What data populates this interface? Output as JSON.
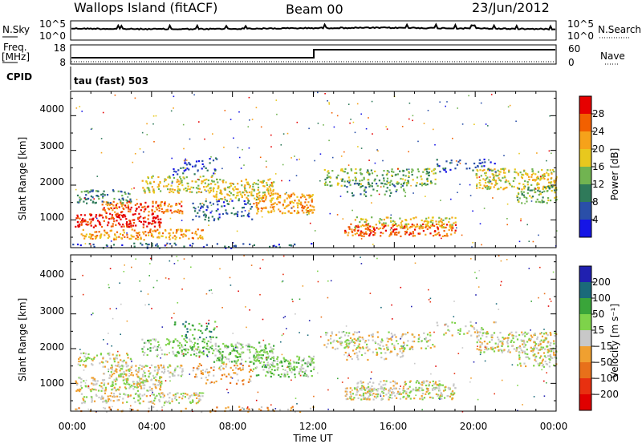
{
  "header": {
    "title": "Wallops Island (fitACF)",
    "beam": "Beam 00",
    "date": "23/Jun/2012"
  },
  "nsky_panel": {
    "label": "N.Sky",
    "right_label": "N.Search",
    "y_ticks": [
      "10^5",
      "10^0"
    ]
  },
  "freq_panel": {
    "label_line1": "Freq.",
    "label_line2": "[MHz]",
    "right_label": "Nave",
    "left_ticks": [
      "18",
      "8"
    ],
    "right_ticks": [
      "60",
      "0"
    ],
    "cpid_label": "CPID",
    "cpid_value": "tau (fast) 503"
  },
  "power_colorbar": {
    "label": "Power [dB]",
    "ticks": [
      "28",
      "24",
      "20",
      "16",
      "12",
      "8",
      "4"
    ],
    "colors": [
      "#e60000",
      "#f26000",
      "#f6a21a",
      "#e8c81e",
      "#71b451",
      "#2f7a5a",
      "#2a4fa8",
      "#1515e6"
    ]
  },
  "velocity_colorbar": {
    "label": "Velocity [m s⁻¹]",
    "ticks": [
      "200",
      "100",
      "50",
      "15",
      "−15",
      "−50",
      "−100",
      "−200"
    ],
    "colors": [
      "#2020b0",
      "#1a6a7a",
      "#3aa53a",
      "#7ed34a",
      "#c8c8c8",
      "#f0a030",
      "#e8701a",
      "#e83010",
      "#e00000"
    ]
  },
  "chart_data": [
    {
      "type": "heatmap",
      "title": "",
      "xlabel": "Time UT",
      "ylabel": "Slant Range [km]",
      "x_ticks": [
        "00:00",
        "04:00",
        "08:00",
        "12:00",
        "16:00",
        "20:00",
        "00:00"
      ],
      "y_ticks": [
        "1000",
        "2000",
        "3000",
        "4000"
      ],
      "xlim": [
        0,
        24
      ],
      "ylim": [
        200,
        4700
      ],
      "quantity": "Power [dB]"
    },
    {
      "type": "heatmap",
      "title": "",
      "xlabel": "Time UT",
      "ylabel": "Slant Range [km]",
      "x_ticks": [
        "00:00",
        "04:00",
        "08:00",
        "12:00",
        "16:00",
        "20:00",
        "00:00"
      ],
      "y_ticks": [
        "1000",
        "2000",
        "3000",
        "4000"
      ],
      "xlim": [
        0,
        24
      ],
      "ylim": [
        200,
        4700
      ],
      "quantity": "Velocity [m s⁻¹]"
    }
  ]
}
